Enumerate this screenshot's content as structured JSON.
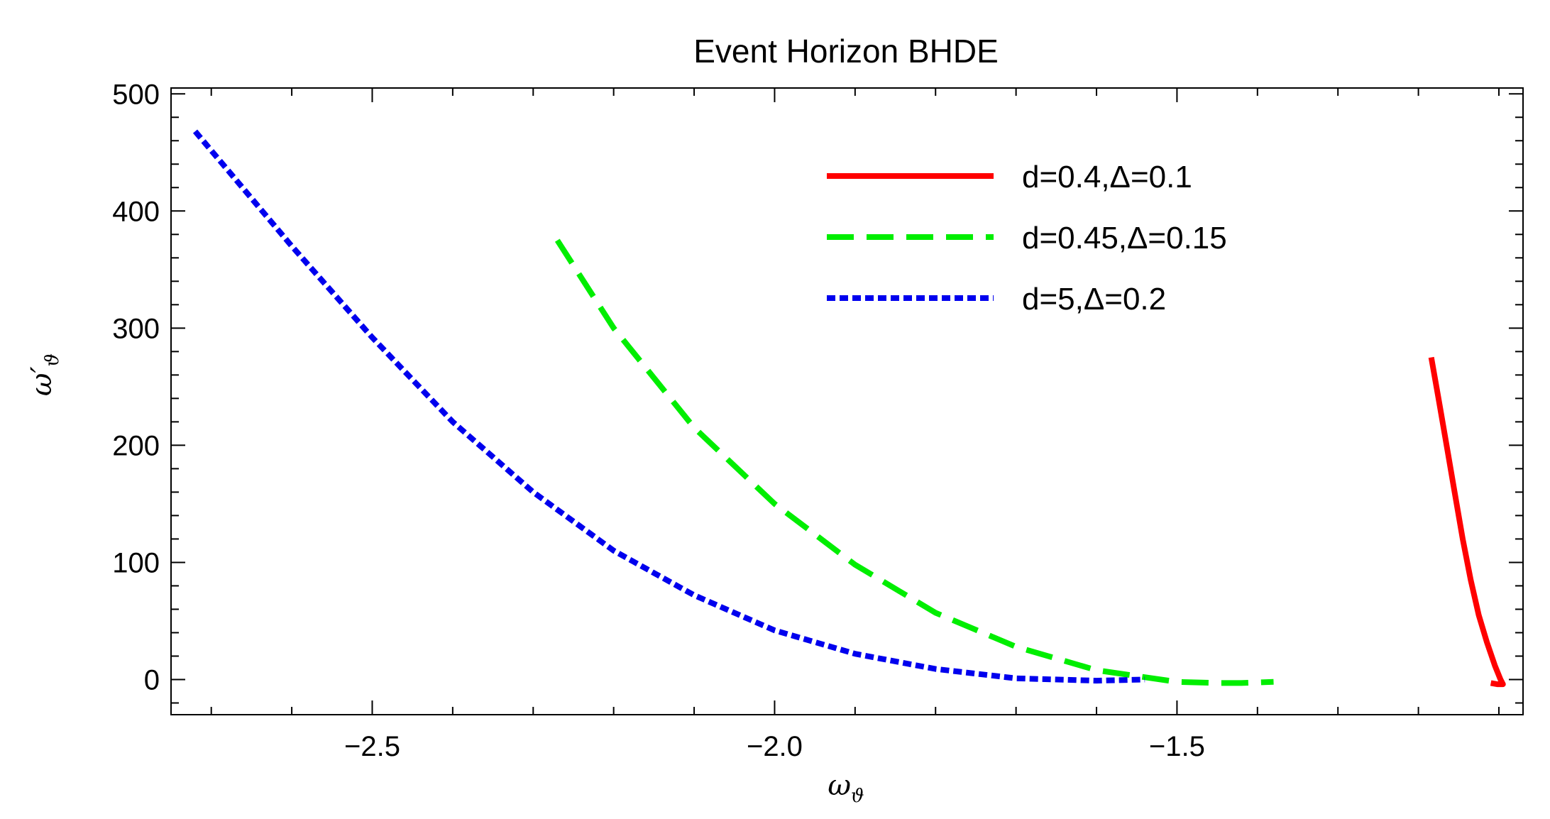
{
  "chart_data": {
    "type": "line",
    "title": "Event Horizon BHDE",
    "xlabel": "ω_ϑ",
    "ylabel": "ω′_ϑ",
    "xlim": [
      -2.75,
      -1.07
    ],
    "ylim": [
      -30,
      505
    ],
    "x_ticks": [
      -2.5,
      -2.0,
      -1.5
    ],
    "x_tick_labels": [
      "−2.5",
      "−2.0",
      "−1.5"
    ],
    "y_ticks": [
      0,
      100,
      200,
      300,
      400,
      500
    ],
    "y_tick_labels": [
      "0",
      "100",
      "200",
      "300",
      "400",
      "500"
    ],
    "grid": false,
    "legend_position": "top-right",
    "series": [
      {
        "name": "d=0.4,Δ=0.1",
        "color": "#ff0000",
        "style": "solid",
        "x": [
          -1.184,
          -1.175,
          -1.165,
          -1.155,
          -1.145,
          -1.135,
          -1.125,
          -1.115,
          -1.105,
          -1.098,
          -1.095,
          -1.102,
          -1.11
        ],
        "y": [
          275,
          240,
          200,
          160,
          120,
          85,
          55,
          32,
          12,
          0,
          -4,
          -4,
          -3
        ]
      },
      {
        "name": "d=0.45,Δ=0.15",
        "color": "#00ee00",
        "style": "dashed",
        "x": [
          -2.27,
          -2.2,
          -2.1,
          -2.0,
          -1.9,
          -1.8,
          -1.7,
          -1.6,
          -1.5,
          -1.45,
          -1.42,
          -1.38
        ],
        "y": [
          375,
          300,
          215,
          150,
          98,
          57,
          28,
          8,
          -2,
          -3,
          -3,
          -2
        ]
      },
      {
        "name": "d=5,Δ=0.2",
        "color": "#0000ee",
        "style": "dotted",
        "x": [
          -2.72,
          -2.6,
          -2.5,
          -2.4,
          -2.3,
          -2.2,
          -2.1,
          -2.0,
          -1.9,
          -1.8,
          -1.7,
          -1.6,
          -1.54
        ],
        "y": [
          468,
          370,
          292,
          220,
          160,
          110,
          72,
          42,
          22,
          9,
          1,
          -1,
          0
        ]
      }
    ]
  }
}
